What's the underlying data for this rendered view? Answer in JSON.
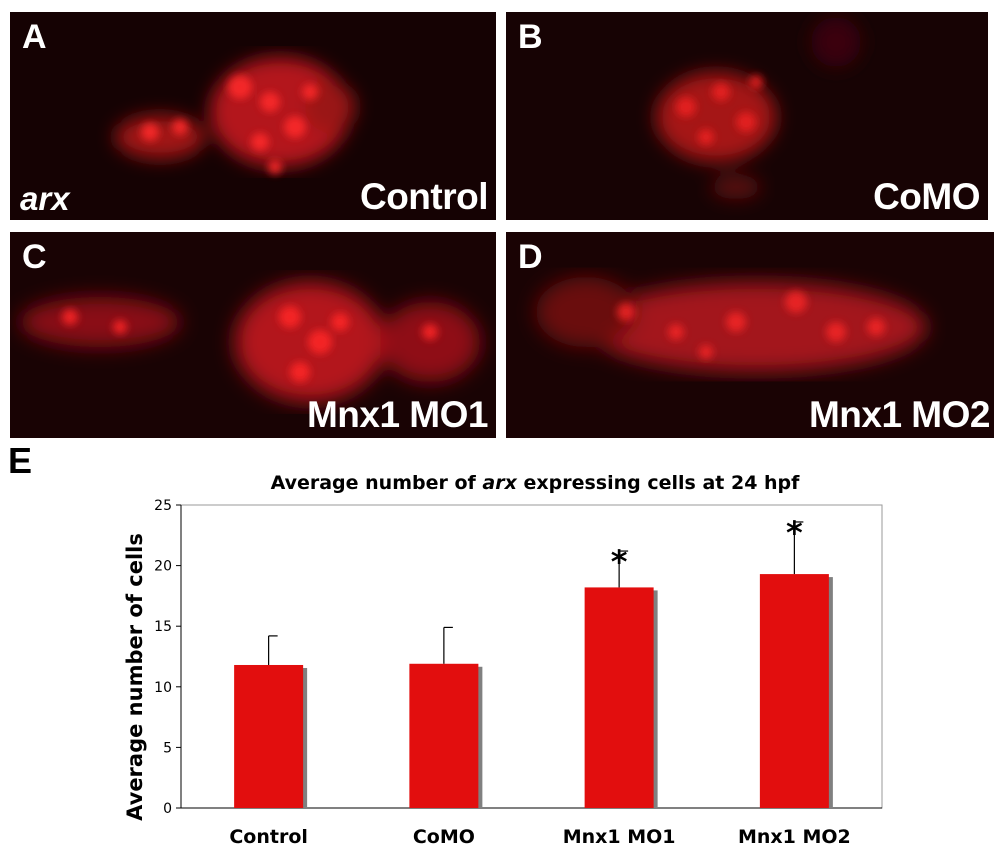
{
  "panels": [
    {
      "letter": "A",
      "label": "Control",
      "gene": "arx"
    },
    {
      "letter": "B",
      "label": "CoMO"
    },
    {
      "letter": "C",
      "label": "Mnx1 MO1"
    },
    {
      "letter": "D",
      "label": "Mnx1 MO2"
    }
  ],
  "chart_letter": "E",
  "chart_data": {
    "type": "bar",
    "title_parts": [
      "Average number of ",
      "arx",
      " expressing cells at 24 hpf"
    ],
    "ylabel": "Average number of cells",
    "xlabel": "",
    "categories": [
      "Control",
      "CoMO",
      "Mnx1 MO1",
      "Mnx1 MO2"
    ],
    "values": [
      11.8,
      11.9,
      18.2,
      19.3
    ],
    "errors": [
      2.4,
      3.0,
      3.0,
      4.3
    ],
    "significant": [
      false,
      false,
      true,
      true
    ],
    "significance_marker": "*",
    "ylim": [
      0,
      25
    ],
    "yticks": [
      0,
      5,
      10,
      15,
      20,
      25
    ],
    "bar_color": "#e20e0e",
    "shadow_color": "#808080"
  }
}
